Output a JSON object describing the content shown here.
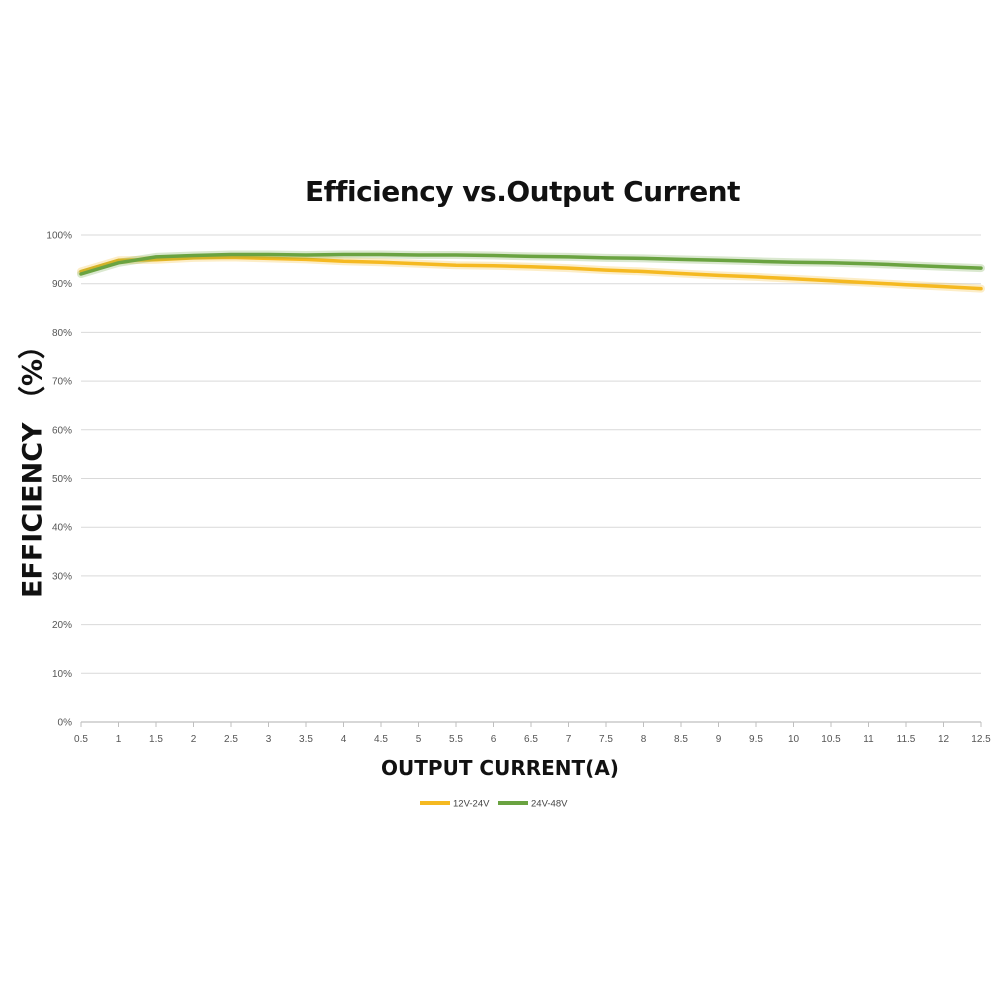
{
  "chart_data": {
    "type": "line",
    "title": "Efficiency vs.Output Current",
    "xlabel": "OUTPUT CURRENT(A)",
    "ylabel": "EFFICIENCY （%）",
    "x": [
      0.5,
      1,
      1.5,
      2,
      2.5,
      3,
      3.5,
      4,
      4.5,
      5,
      5.5,
      6,
      6.5,
      7,
      7.5,
      8,
      8.5,
      9,
      9.5,
      10,
      10.5,
      11,
      11.5,
      12,
      12.5
    ],
    "x_tick_labels": [
      "0.5",
      "1",
      "1.5",
      "2",
      "2.5",
      "3",
      "3.5",
      "4",
      "4.5",
      "5",
      "5.5",
      "6",
      "6.5",
      "7",
      "7.5",
      "8",
      "8.5",
      "9",
      "9.5",
      "10",
      "10.5",
      "11",
      "11.5",
      "12",
      "12.5"
    ],
    "y_tick_labels": [
      "0%",
      "10%",
      "20%",
      "30%",
      "40%",
      "50%",
      "60%",
      "70%",
      "80%",
      "90%",
      "100%"
    ],
    "xlim": [
      0.5,
      12.5
    ],
    "ylim": [
      0,
      100
    ],
    "grid": "horizontal",
    "legend_position": "bottom",
    "series": [
      {
        "name": "12V-24V",
        "color": "#F5B921",
        "values": [
          92.5,
          94.8,
          94.9,
          95.3,
          95.4,
          95.2,
          95.0,
          94.6,
          94.4,
          94.1,
          93.8,
          93.7,
          93.5,
          93.2,
          92.8,
          92.5,
          92.1,
          91.7,
          91.4,
          91.0,
          90.6,
          90.2,
          89.8,
          89.4,
          89.0
        ]
      },
      {
        "name": "24V-48V",
        "color": "#6AA341",
        "values": [
          92.0,
          94.3,
          95.5,
          95.8,
          96.0,
          96.0,
          95.9,
          96.0,
          96.0,
          95.9,
          95.9,
          95.8,
          95.6,
          95.5,
          95.3,
          95.2,
          95.0,
          94.8,
          94.6,
          94.4,
          94.3,
          94.1,
          93.8,
          93.5,
          93.2
        ]
      }
    ]
  }
}
